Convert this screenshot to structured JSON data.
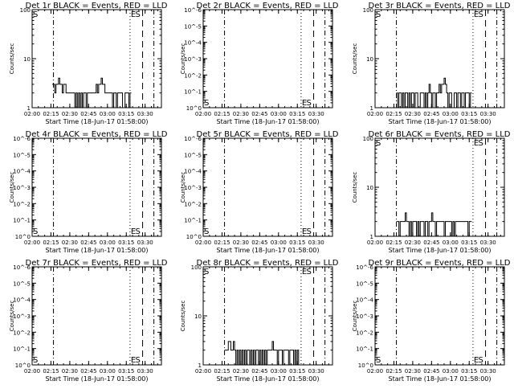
{
  "chart_data": [
    {
      "type": "line",
      "title": "Det 1r BLACK = Events, RED = LLD",
      "xlabel": "Start Time (18-Jun-17 01:58:00)",
      "ylabel": "Counts/sec",
      "yscale": "log",
      "ylim": [
        1,
        100
      ],
      "yticks": [
        "1",
        "10",
        "100"
      ],
      "series": [
        {
          "name": "Events",
          "color": "#000000",
          "start_min": 16,
          "values": [
            3,
            3,
            2,
            3,
            3,
            4,
            3,
            3,
            2,
            3,
            3,
            2,
            2,
            2,
            2,
            2,
            2,
            2,
            1,
            2,
            1,
            2,
            1,
            2,
            1,
            2,
            2,
            1,
            2,
            2,
            2,
            2,
            2,
            2,
            2,
            3,
            2,
            3,
            3,
            4,
            3,
            3,
            2,
            2,
            2,
            2,
            2,
            2,
            1,
            2,
            2,
            1,
            2,
            2,
            2,
            2,
            1,
            1,
            2,
            2,
            2,
            1,
            2
          ]
        }
      ],
      "markers": {
        "top": true,
        "labels": [
          "S",
          "E",
          "S"
        ]
      }
    },
    {
      "type": "line",
      "title": "Det 2r BLACK = Events, RED = LLD",
      "xlabel": "Start Time (18-Jun-17 01:58:00)",
      "ylabel": "Counts/sec",
      "yscale": "log",
      "yticks": [
        "10^0",
        "10^-1",
        "10^-2",
        "10^-3",
        "10^-4",
        "10^-5",
        "10^-6"
      ],
      "series": [],
      "markers": {
        "top": false,
        "labels": [
          "S",
          "E",
          "S"
        ]
      }
    },
    {
      "type": "line",
      "title": "Det 3r BLACK = Events, RED = LLD",
      "xlabel": "Start Time (18-Jun-17 01:58:00)",
      "ylabel": "Counts/sec",
      "yscale": "log",
      "ylim": [
        1,
        100
      ],
      "yticks": [
        "1",
        "10",
        "100"
      ],
      "series": [
        {
          "name": "Events",
          "color": "#000000",
          "start_min": 17,
          "values": [
            2,
            1,
            2,
            2,
            1,
            2,
            1,
            2,
            2,
            1,
            2,
            1,
            2,
            2,
            1,
            2,
            2,
            1,
            1,
            2,
            2,
            2,
            1,
            2,
            1,
            2,
            3,
            2,
            1,
            2,
            2,
            1,
            2,
            2,
            3,
            2,
            3,
            3,
            4,
            3,
            2,
            1,
            2,
            2,
            1,
            1,
            2,
            2,
            1,
            2,
            2,
            1,
            2,
            2,
            1,
            2,
            2,
            2,
            1,
            2
          ]
        }
      ],
      "markers": {
        "top": true,
        "labels": [
          "S",
          "E",
          "S"
        ]
      }
    },
    {
      "type": "line",
      "title": "Det 4r BLACK = Events, RED = LLD",
      "xlabel": "Start Time (18-Jun-17 01:58:00)",
      "ylabel": "Counts/sec",
      "yscale": "log",
      "yticks": [
        "10^0",
        "10^-1",
        "10^-2",
        "10^-3",
        "10^-4",
        "10^-5",
        "10^-6"
      ],
      "series": [],
      "markers": {
        "top": false,
        "labels": [
          "S",
          "E",
          "S"
        ]
      }
    },
    {
      "type": "line",
      "title": "Det 5r BLACK = Events, RED = LLD",
      "xlabel": "Start Time (18-Jun-17 01:58:00)",
      "ylabel": "Counts/sec",
      "yscale": "log",
      "yticks": [
        "10^0",
        "10^-1",
        "10^-2",
        "10^-3",
        "10^-4",
        "10^-5",
        "10^-6"
      ],
      "series": [],
      "markers": {
        "top": false,
        "labels": [
          "S",
          "E",
          "S"
        ]
      }
    },
    {
      "type": "line",
      "title": "Det 6r BLACK = Events, RED = LLD",
      "xlabel": "Start Time (18-Jun-17 01:58:00)",
      "ylabel": "Counts/sec",
      "yscale": "log",
      "ylim": [
        1,
        100
      ],
      "yticks": [
        "1",
        "10",
        "100"
      ],
      "series": [
        {
          "name": "Events",
          "color": "#000000",
          "start_min": 17,
          "values": [
            2,
            2,
            1,
            2,
            2,
            2,
            2,
            3,
            2,
            2,
            1,
            2,
            1,
            2,
            2,
            2,
            1,
            2,
            1,
            2,
            2,
            2,
            1,
            2,
            2,
            1,
            2,
            2,
            3,
            2,
            2,
            1,
            2,
            2,
            2,
            2,
            2,
            2,
            1,
            2,
            2,
            2,
            2,
            2,
            1,
            2,
            1,
            2,
            2,
            2,
            2,
            2,
            2,
            2,
            2,
            2,
            2,
            1,
            2,
            2
          ]
        }
      ],
      "markers": {
        "top": true,
        "labels": [
          "S",
          "E",
          "S"
        ]
      }
    },
    {
      "type": "line",
      "title": "Det 7r BLACK = Events, RED = LLD",
      "xlabel": "Start Time (18-Jun-17 01:58:00)",
      "ylabel": "Counts/sec",
      "yscale": "log",
      "yticks": [
        "10^0",
        "10^-1",
        "10^-2",
        "10^-3",
        "10^-4",
        "10^-5",
        "10^-6"
      ],
      "series": [],
      "markers": {
        "top": false,
        "labels": [
          "S",
          "E",
          "S"
        ]
      }
    },
    {
      "type": "line",
      "title": "Det 8r BLACK = Events, RED = LLD",
      "xlabel": "Start Time (18-Jun-17 01:58:00)",
      "ylabel": "Counts/sec",
      "yscale": "log",
      "ylim": [
        1,
        100
      ],
      "yticks": [
        "1",
        "10",
        "100"
      ],
      "series": [
        {
          "name": "Events",
          "color": "#000000",
          "start_min": 17,
          "values": [
            2,
            2,
            2,
            3,
            3,
            2,
            2,
            3,
            2,
            1,
            2,
            1,
            2,
            1,
            2,
            1,
            2,
            1,
            2,
            2,
            1,
            2,
            1,
            2,
            1,
            2,
            2,
            1,
            2,
            1,
            2,
            1,
            2,
            1,
            2,
            2,
            2,
            2,
            3,
            2,
            2,
            2,
            1,
            2,
            2,
            2,
            1,
            2,
            2,
            2,
            2,
            1,
            2,
            2,
            2,
            1,
            2,
            1,
            2,
            1
          ]
        }
      ],
      "markers": {
        "top": true,
        "labels": [
          "S",
          "E",
          "S"
        ]
      }
    },
    {
      "type": "line",
      "title": "Det 9r BLACK = Events, RED = LLD",
      "xlabel": "Start Time (18-Jun-17 01:58:00)",
      "ylabel": "Counts/sec",
      "yscale": "log",
      "yticks": [
        "10^0",
        "10^-1",
        "10^-2",
        "10^-3",
        "10^-4",
        "10^-5",
        "10^-6"
      ],
      "series": [],
      "markers": {
        "top": false,
        "labels": [
          "S",
          "E",
          "S"
        ]
      }
    }
  ],
  "x_axis": {
    "tick_labels": [
      "02:00",
      "02:15",
      "02:30",
      "02:45",
      "03:00",
      "03:15",
      "03:30"
    ],
    "tick_minutes": [
      0,
      15,
      30,
      45,
      60,
      75,
      90
    ],
    "range_minutes": [
      0,
      103
    ]
  },
  "vertical_lines": [
    {
      "style": "dash-dot",
      "minute": 17
    },
    {
      "style": "dotted",
      "minute": 78
    },
    {
      "style": "dashed",
      "minute": 88
    },
    {
      "style": "dash-dot",
      "minute": 97
    }
  ]
}
